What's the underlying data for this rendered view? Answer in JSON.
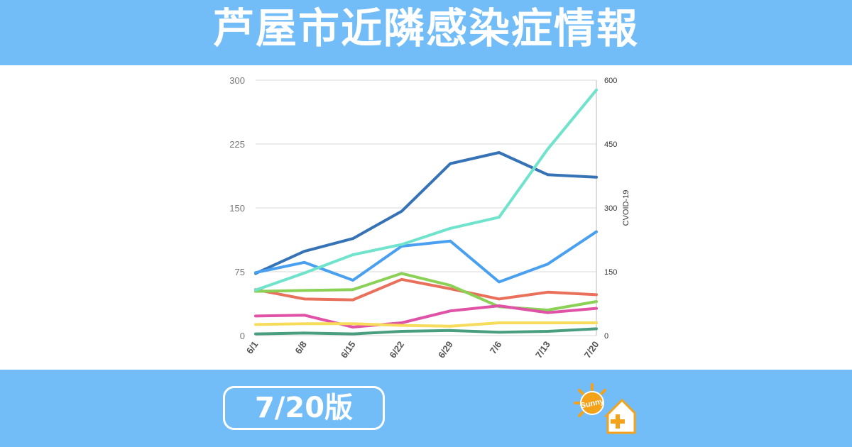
{
  "header": {
    "title": "芦屋市近隣感染症情報"
  },
  "footer": {
    "edition_label": "7/20版",
    "logo_text": "Sunny"
  },
  "colors": {
    "band": "#72bdf7",
    "series": [
      "#3672b6",
      "#4aa0f0",
      "#e9705a",
      "#8bd156",
      "#e052a6",
      "#f7dc5c",
      "#4a9e80",
      "#6fe3cc"
    ]
  },
  "chart_data": {
    "type": "line",
    "categories": [
      "6/1",
      "6/8",
      "6/15",
      "6/22",
      "6/29",
      "7/6",
      "7/13",
      "7/20"
    ],
    "y_left": {
      "ticks": [
        0,
        75,
        150,
        225,
        300
      ],
      "ylim": [
        0,
        300
      ]
    },
    "y_right": {
      "label": "CVOID-19",
      "ticks": [
        0,
        150,
        300,
        450,
        600
      ],
      "ylim": [
        0,
        600
      ]
    },
    "grid": true,
    "legend": "none",
    "series": [
      {
        "axis": "left",
        "color": "#3672b6",
        "values": [
          73,
          99,
          114,
          146,
          202,
          215,
          189,
          186
        ]
      },
      {
        "axis": "left",
        "color": "#4aa0f0",
        "values": [
          74,
          86,
          65,
          105,
          111,
          63,
          84,
          122
        ]
      },
      {
        "axis": "left",
        "color": "#e9705a",
        "values": [
          54,
          43,
          42,
          66,
          55,
          43,
          51,
          48
        ]
      },
      {
        "axis": "left",
        "color": "#8bd156",
        "values": [
          52,
          53,
          54,
          73,
          59,
          34,
          30,
          40
        ]
      },
      {
        "axis": "left",
        "color": "#e052a6",
        "values": [
          23,
          24,
          10,
          15,
          29,
          35,
          27,
          32
        ]
      },
      {
        "axis": "left",
        "color": "#f7dc5c",
        "values": [
          13,
          14,
          14,
          12,
          11,
          15,
          15,
          15
        ]
      },
      {
        "axis": "left",
        "color": "#4a9e80",
        "values": [
          2,
          3,
          2,
          5,
          6,
          4,
          5,
          8
        ]
      },
      {
        "axis": "right",
        "color": "#6fe3cc",
        "values": [
          107,
          147,
          190,
          214,
          252,
          278,
          438,
          577
        ]
      }
    ]
  }
}
